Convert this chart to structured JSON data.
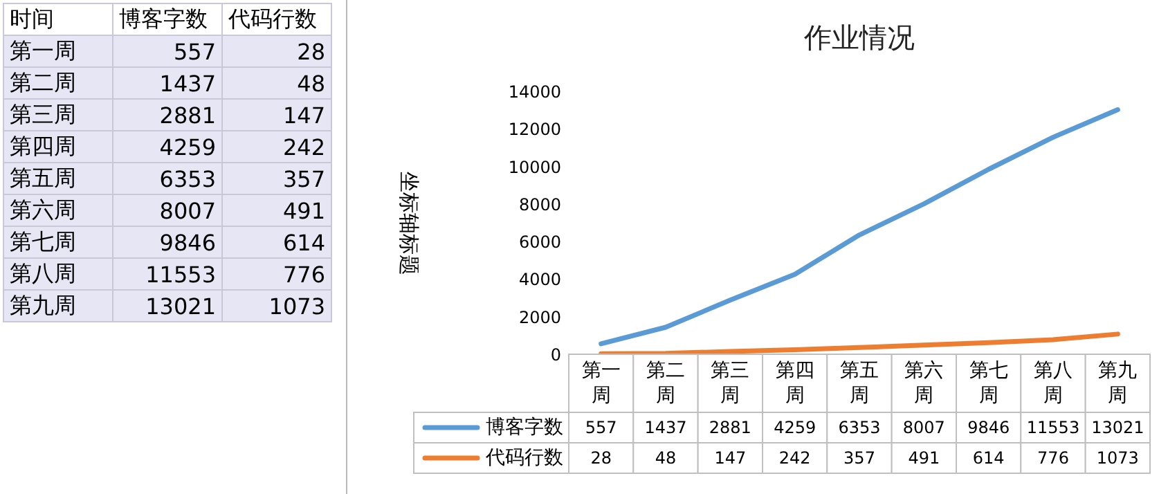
{
  "chart_data": [
    {
      "type": "other",
      "annotations": [
        "时间",
        "博客字数",
        "代码行数",
        "第一周",
        "557",
        "28",
        "第二周",
        "1437",
        "48",
        "第三周",
        "2881",
        "147",
        "第四周",
        "4259",
        "242",
        "第五周",
        "6353",
        "357",
        "第六周",
        "8007",
        "491",
        "第七周",
        "9846",
        "614",
        "第八周",
        "11553",
        "776",
        "第九周",
        "13021",
        "1073"
      ]
    },
    {
      "type": "line",
      "title": "作业情况",
      "ylabel": "坐标轴标题",
      "categories": [
        "第一周",
        "第二周",
        "第三周",
        "第四周",
        "第五周",
        "第六周",
        "第七周",
        "第八周",
        "第九周"
      ],
      "ylim": [
        0,
        14000
      ],
      "yticks": [
        0,
        2000,
        4000,
        6000,
        8000,
        10000,
        12000,
        14000
      ],
      "legend": "bottom",
      "data_labels": true,
      "series": [
        {
          "name": "博客字数",
          "color": "#5b9bd5",
          "values": [
            557,
            1437,
            2881,
            4259,
            6353,
            8007,
            9846,
            11553,
            13021
          ]
        },
        {
          "name": "代码行数",
          "color": "#ed7d31",
          "values": [
            28,
            48,
            147,
            242,
            357,
            491,
            614,
            776,
            1073
          ]
        }
      ]
    }
  ]
}
